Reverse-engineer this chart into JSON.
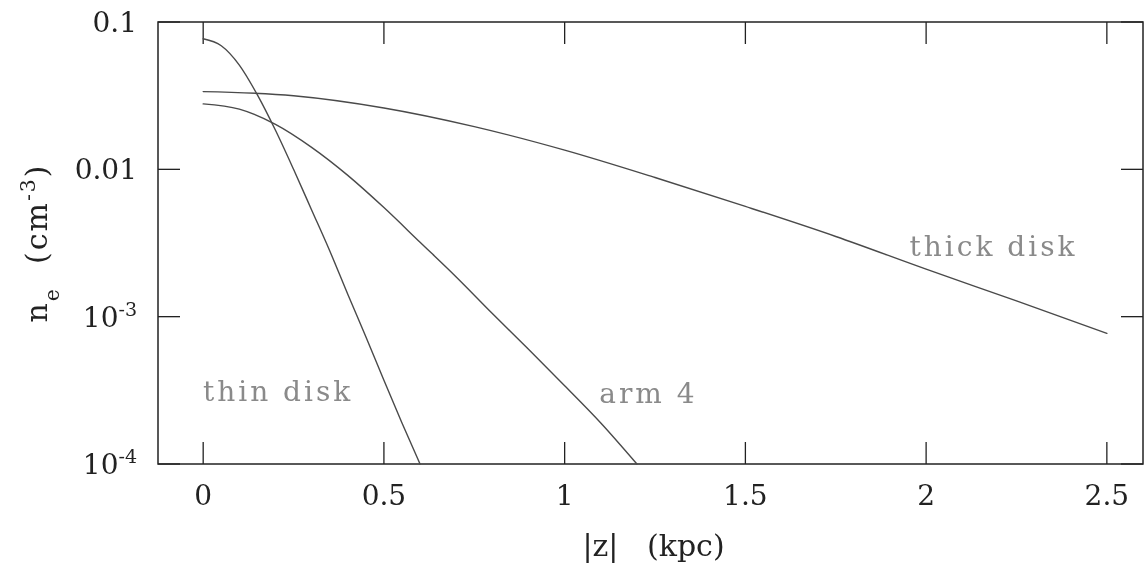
{
  "chart_data": {
    "type": "line",
    "xlabel": "|z|   (kpc)",
    "ylabel": "n$_{e}$  (cm$^{-3}$)",
    "log": "y",
    "xlim": [
      -0.125,
      2.6
    ],
    "xticks": [
      0,
      0.5,
      1,
      1.5,
      2,
      2.5
    ],
    "ylim": [
      0.0001,
      0.1
    ],
    "yticks": [
      {
        "value": 0.0001,
        "label": "10$^{-4}$"
      },
      {
        "value": 0.001,
        "label": "10$^{-3}$"
      },
      0.01,
      0.1
    ],
    "series": [
      {
        "name": "thin disk",
        "color": "#4a4a4a",
        "x": [
          0,
          0.05,
          0.1,
          0.15,
          0.2,
          0.25,
          0.3,
          0.35,
          0.4,
          0.45,
          0.5,
          0.55,
          0.6
        ],
        "values": [
          0.077,
          0.069,
          0.051,
          0.032,
          0.0184,
          0.01,
          0.0053,
          0.0028,
          0.00142,
          0.00073,
          0.00037,
          0.00019,
          0.0001
        ]
      },
      {
        "name": "arm 4",
        "color": "#4a4a4a",
        "x": [
          0,
          0.1,
          0.2,
          0.3,
          0.4,
          0.5,
          0.6,
          0.7,
          0.8,
          0.9,
          1,
          1.1,
          1.2
        ],
        "values": [
          0.0278,
          0.0256,
          0.0202,
          0.0141,
          0.0091,
          0.0055,
          0.0032,
          0.00186,
          0.00105,
          0.0006,
          0.00034,
          0.00019,
          0.0001
        ]
      },
      {
        "name": "thick disk",
        "color": "#4a4a4a",
        "x": [
          0,
          0.25,
          0.5,
          0.75,
          1,
          1.25,
          1.5,
          1.75,
          2,
          2.25,
          2.5
        ],
        "values": [
          0.0337,
          0.0316,
          0.0261,
          0.0195,
          0.0135,
          0.0088,
          0.0056,
          0.0035,
          0.0021,
          0.00128,
          0.00077
        ]
      }
    ]
  }
}
